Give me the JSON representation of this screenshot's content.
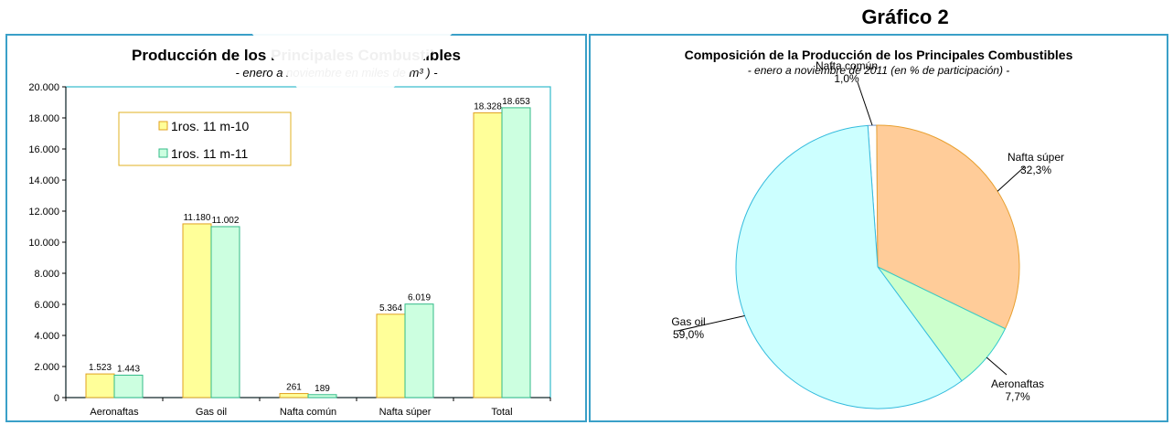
{
  "header": {
    "grafico_label": "Gráfico 2"
  },
  "colors": {
    "frame": "#3aa0c8",
    "bar1_fill": "#ffff99",
    "bar1_stroke": "#e0a020",
    "bar2_fill": "#ccffe0",
    "bar2_stroke": "#33bb88",
    "plot_border": "#33bbcc",
    "slice_nafta_comun": "#ffffff",
    "slice_nafta_super": "#ffcc99",
    "slice_aeronaftas": "#ccffcc",
    "slice_gas_oil": "#ccffff"
  },
  "chart_data": [
    {
      "type": "bar",
      "title": "Producción de los Principales Combustibles",
      "subtitle": "- enero a noviembre en miles de m³ ) -",
      "categories": [
        "Aeronaftas",
        "Gas oil",
        "Nafta común",
        "Nafta súper",
        "Total"
      ],
      "series": [
        {
          "name": "1ros. 11 m-10",
          "values": [
            1523,
            11180,
            261,
            5364,
            18328
          ],
          "labels": [
            "1.523",
            "11.180",
            "261",
            "5.364",
            "18.328"
          ]
        },
        {
          "name": "1ros. 11 m-11",
          "values": [
            1443,
            11002,
            189,
            6019,
            18653
          ],
          "labels": [
            "1.443",
            "11.002",
            "189",
            "6.019",
            "18.653"
          ]
        }
      ],
      "ylim": [
        0,
        20000
      ],
      "yticks": [
        {
          "value": 0,
          "label": "0"
        },
        {
          "value": 2000,
          "label": "2.000"
        },
        {
          "value": 4000,
          "label": "4.000"
        },
        {
          "value": 6000,
          "label": "6.000"
        },
        {
          "value": 8000,
          "label": "8.000"
        },
        {
          "value": 10000,
          "label": "10.000"
        },
        {
          "value": 12000,
          "label": "12.000"
        },
        {
          "value": 14000,
          "label": "14.000"
        },
        {
          "value": 16000,
          "label": "16.000"
        },
        {
          "value": 18000,
          "label": "18.000"
        },
        {
          "value": 20000,
          "label": "20.000"
        }
      ],
      "grid": false,
      "legend_position": "top-left"
    },
    {
      "type": "pie",
      "title": "Composición de la Producción de los Principales Combustibles",
      "subtitle": "- enero a noviembre de 2011 (en % de participación) -",
      "slices": [
        {
          "name": "Nafta común",
          "value": 1.0,
          "pct_label": "1,0%"
        },
        {
          "name": "Nafta súper",
          "value": 32.3,
          "pct_label": "32,3%"
        },
        {
          "name": "Aeronaftas",
          "value": 7.7,
          "pct_label": "7,7%"
        },
        {
          "name": "Gas oil",
          "value": 59.0,
          "pct_label": "59,0%"
        }
      ]
    }
  ]
}
